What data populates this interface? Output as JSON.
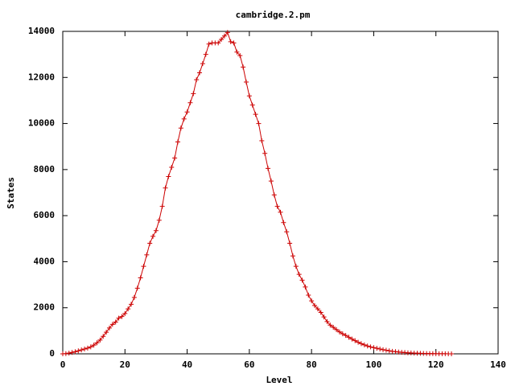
{
  "chart_data": {
    "type": "line",
    "title": "cambridge.2.pm",
    "xlabel": "Level",
    "ylabel": "States",
    "x": [
      0,
      1,
      2,
      3,
      4,
      5,
      6,
      7,
      8,
      9,
      10,
      11,
      12,
      13,
      14,
      15,
      16,
      17,
      18,
      19,
      20,
      21,
      22,
      23,
      24,
      25,
      26,
      27,
      28,
      29,
      30,
      31,
      32,
      33,
      34,
      35,
      36,
      37,
      38,
      39,
      40,
      41,
      42,
      43,
      44,
      45,
      46,
      47,
      48,
      49,
      50,
      51,
      52,
      53,
      54,
      55,
      56,
      57,
      58,
      59,
      60,
      61,
      62,
      63,
      64,
      65,
      66,
      67,
      68,
      69,
      70,
      71,
      72,
      73,
      74,
      75,
      76,
      77,
      78,
      79,
      80,
      81,
      82,
      83,
      84,
      85,
      86,
      87,
      88,
      89,
      90,
      91,
      92,
      93,
      94,
      95,
      96,
      97,
      98,
      99,
      100,
      101,
      102,
      103,
      104,
      105,
      106,
      107,
      108,
      109,
      110,
      111,
      112,
      113,
      114,
      115,
      116,
      117,
      118,
      119,
      120,
      121,
      122,
      123,
      124,
      125
    ],
    "series": [
      {
        "color": "#cc0000",
        "marker": "+",
        "values": [
          0,
          10,
          30,
          60,
          90,
          130,
          170,
          210,
          250,
          300,
          380,
          480,
          600,
          760,
          940,
          1120,
          1280,
          1380,
          1550,
          1620,
          1750,
          1950,
          2150,
          2450,
          2850,
          3300,
          3800,
          4300,
          4800,
          5100,
          5350,
          5800,
          6400,
          7200,
          7700,
          8100,
          8500,
          9200,
          9800,
          10200,
          10500,
          10900,
          11300,
          11900,
          12200,
          12600,
          13000,
          13450,
          13500,
          13500,
          13500,
          13650,
          13800,
          13950,
          13550,
          13500,
          13100,
          12950,
          12450,
          11800,
          11200,
          10800,
          10400,
          10000,
          9250,
          8700,
          8050,
          7500,
          6900,
          6400,
          6150,
          5700,
          5300,
          4800,
          4250,
          3800,
          3450,
          3200,
          2900,
          2550,
          2300,
          2100,
          1950,
          1800,
          1600,
          1400,
          1250,
          1150,
          1050,
          950,
          870,
          800,
          720,
          640,
          570,
          500,
          440,
          390,
          340,
          300,
          270,
          240,
          210,
          180,
          155,
          130,
          110,
          95,
          80,
          65,
          55,
          45,
          38,
          30,
          25,
          20,
          16,
          13,
          10,
          8,
          6,
          5,
          4,
          3,
          2,
          1
        ]
      }
    ],
    "xlim": [
      0,
      140
    ],
    "xticks": [
      0,
      20,
      40,
      60,
      80,
      100,
      120,
      140
    ],
    "ylim": [
      0,
      14000
    ],
    "yticks": [
      0,
      2000,
      4000,
      6000,
      8000,
      10000,
      12000,
      14000
    ],
    "grid": false
  }
}
